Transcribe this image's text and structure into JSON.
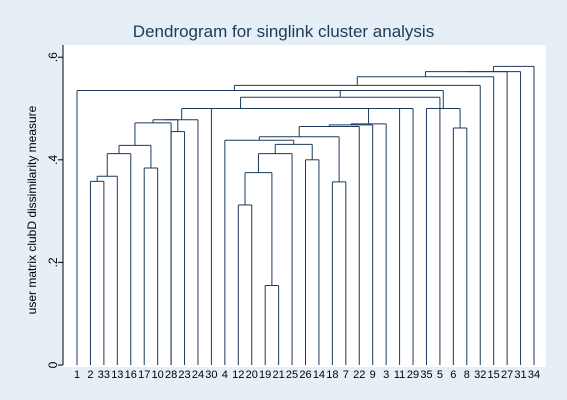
{
  "chart_data": {
    "type": "dendrogram",
    "title": "Dendrogram for singlink cluster analysis",
    "ylabel": "user matrix clubD dissimilarity measure",
    "ylim": [
      0,
      0.62
    ],
    "yticks": [
      0,
      0.2,
      0.4,
      0.6
    ],
    "ytick_labels": [
      "0",
      ".2",
      ".4",
      ".6"
    ],
    "leaves": [
      "1",
      "2",
      "33",
      "13",
      "16",
      "17",
      "10",
      "28",
      "23",
      "24",
      "30",
      "4",
      "12",
      "20",
      "19",
      "21",
      "25",
      "26",
      "14",
      "18",
      "7",
      "22",
      "9",
      "3",
      "11",
      "29",
      "35",
      "5",
      "6",
      "8",
      "32",
      "15",
      "27",
      "31",
      "34"
    ],
    "merges": [
      {
        "a": "L:19",
        "b": "L:21",
        "h": 0.155
      },
      {
        "a": "L:12",
        "b": "L:20",
        "h": 0.312
      },
      {
        "a": "L:18",
        "b": "L:7",
        "h": 0.357
      },
      {
        "a": "L:2",
        "b": "L:33",
        "h": 0.358
      },
      {
        "a": "M:3",
        "b": "L:13",
        "h": 0.368
      },
      {
        "a": "M:1",
        "b": "M:0",
        "h": 0.375
      },
      {
        "a": "L:17",
        "b": "L:10",
        "h": 0.384
      },
      {
        "a": "L:26",
        "b": "L:14",
        "h": 0.4
      },
      {
        "a": "M:5",
        "b": "L:25",
        "h": 0.412
      },
      {
        "a": "M:4",
        "b": "L:16",
        "h": 0.412
      },
      {
        "a": "M:9",
        "b": "M:6",
        "h": 0.428
      },
      {
        "a": "M:8",
        "b": "M:7",
        "h": 0.43
      },
      {
        "a": "L:4",
        "b": "M:11",
        "h": 0.438
      },
      {
        "a": "M:12",
        "b": "M:2",
        "h": 0.445
      },
      {
        "a": "L:28",
        "b": "L:23",
        "h": 0.455
      },
      {
        "a": "L:6",
        "b": "L:8",
        "h": 0.462
      },
      {
        "a": "M:13",
        "b": "L:22",
        "h": 0.465
      },
      {
        "a": "M:16",
        "b": "L:9",
        "h": 0.468
      },
      {
        "a": "M:17",
        "b": "L:3",
        "h": 0.47
      },
      {
        "a": "M:10",
        "b": "L:28b",
        "h": 0.472
      },
      {
        "a": "M:19",
        "b": "M:14",
        "h": 0.478
      },
      {
        "a": "M:20",
        "b": "L:24",
        "h": 0.478
      },
      {
        "a": "L:11",
        "b": "L:29",
        "h": 0.5
      },
      {
        "a": "L:35",
        "b": "M:15",
        "h": 0.5
      },
      {
        "a": "M:18",
        "b": "M:22",
        "h": 0.5
      },
      {
        "a": "M:24",
        "b": "L:30",
        "h": 0.5
      },
      {
        "a": "M:21",
        "b": "M:25",
        "h": 0.5
      },
      {
        "a": "M:26",
        "b": "L:5",
        "h": 0.522
      },
      {
        "a": "M:27",
        "b": "M:23",
        "h": 0.535
      },
      {
        "a": "L:1",
        "b": "M:28",
        "h": 0.535
      },
      {
        "a": "M:29",
        "b": "L:32",
        "h": 0.545
      },
      {
        "a": "M:30",
        "b": "L:15",
        "h": 0.562
      },
      {
        "a": "M:31",
        "b": "L:27",
        "h": 0.572
      },
      {
        "a": "M:32",
        "b": "L:31",
        "h": 0.572
      },
      {
        "a": "M:33",
        "b": "L:34",
        "h": 0.582
      }
    ],
    "colors": {
      "background": "#e6eff5",
      "plot": "#ffffff",
      "lines": "#1b3a5c",
      "title": "#1d3a5b"
    }
  }
}
